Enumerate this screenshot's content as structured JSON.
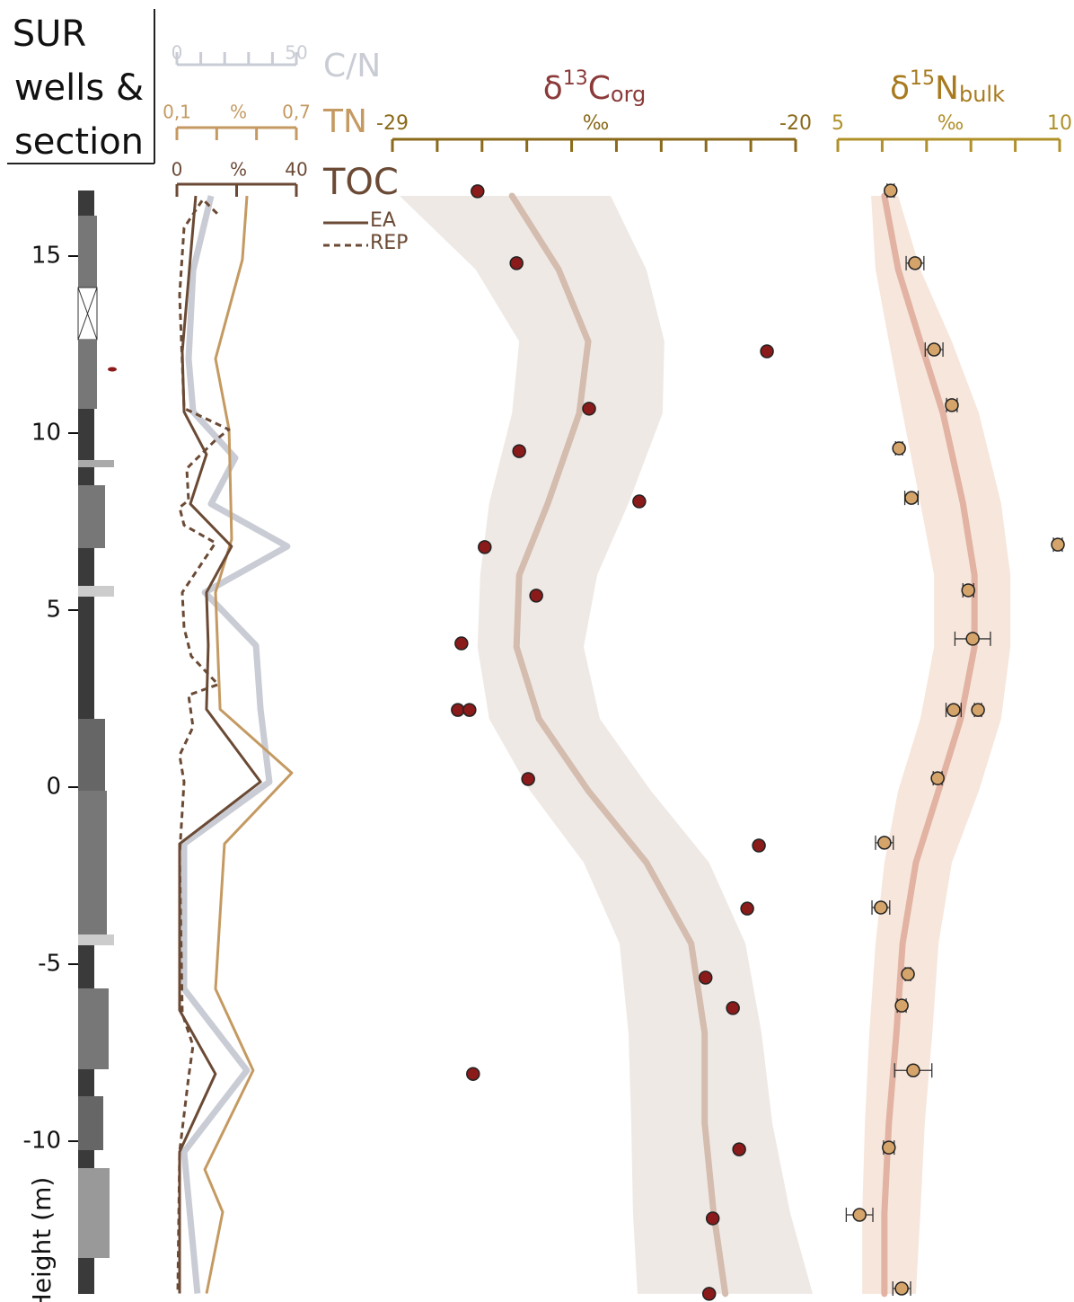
{
  "chart_data": [
    {
      "type": "section",
      "title": [
        "SUR",
        "wells &",
        "section"
      ],
      "ylabel": "Height (m)",
      "ylim": [
        -14.44,
        17.03
      ],
      "yticks": [
        15,
        10,
        5,
        0,
        -5,
        -10
      ]
    },
    {
      "type": "line",
      "axes": [
        {
          "name": "C/N",
          "color": "#c9ccd4",
          "xlim": [
            0,
            50
          ],
          "xticks": [
            0,
            50
          ],
          "xminorticks": [
            10,
            20,
            30,
            40
          ]
        },
        {
          "name": "TN",
          "color": "#c49a62",
          "xlim": [
            0.1,
            0.7
          ],
          "xticks": [
            {
              "value": 0.1,
              "label": "0,1"
            },
            {
              "value": 0.7,
              "label": "0,7"
            }
          ],
          "xminorticks": [
            0.3,
            0.5
          ],
          "xunit": "%"
        },
        {
          "name": "TOC",
          "color": "#6b4a35",
          "xlim": [
            0,
            40
          ],
          "xticks": [
            0,
            40
          ],
          "xminorticks": [
            20
          ],
          "xunit": "%"
        }
      ],
      "series": [
        {
          "axis": 0,
          "x": [
            14.3,
            6.8,
            4.9,
            6.8,
            24.4,
            14.3,
            46.2,
            11.7,
            33.1,
            35.0,
            38.7,
            3.0,
            3.0,
            29.3,
            3.0,
            8.6
          ],
          "y": [
            16.7,
            14.6,
            12.1,
            10.6,
            9.3,
            8.0,
            6.8,
            5.5,
            4.0,
            2.2,
            0.15,
            -1.6,
            -5.7,
            -8.0,
            -10.3,
            -14.3
          ]
        },
        {
          "axis": 1,
          "x": [
            0.452,
            0.429,
            0.294,
            0.362,
            0.375,
            0.294,
            0.317,
            0.677,
            0.339,
            0.294,
            0.483,
            0.24,
            0.33,
            0.249
          ],
          "y": [
            16.7,
            14.9,
            12.1,
            10.1,
            7.0,
            5.5,
            2.2,
            0.4,
            -1.6,
            -5.7,
            -8.0,
            -10.8,
            -12.0,
            -14.3
          ]
        },
        {
          "name": "EA",
          "axis": 2,
          "x": [
            6.3,
            1.8,
            2.4,
            9.9,
            4.5,
            18.3,
            9.9,
            10.5,
            9.9,
            28.0,
            0.9,
            0.9,
            12.9,
            0.9,
            0.9
          ],
          "y": [
            16.7,
            12.3,
            10.6,
            9.4,
            8.0,
            6.8,
            5.5,
            4.0,
            2.2,
            0.15,
            -1.6,
            -6.3,
            -8.1,
            -10.3,
            -14.3
          ]
        },
        {
          "name": "REP",
          "axis": 2,
          "dashed": true,
          "x": [
            13.5,
            8.7,
            2.4,
            0.9,
            2.4,
            17.4,
            12.9,
            3.3,
            3.9,
            0.9,
            2.4,
            12.9,
            1.8,
            2.4,
            4.8,
            13.8,
            3.9,
            5.4,
            0.9,
            2.4,
            0.9,
            1.8,
            5.4,
            3.9,
            0.9,
            0.3
          ],
          "y": [
            16.2,
            16.6,
            15.8,
            13.9,
            10.7,
            10.1,
            9.8,
            9.0,
            8.1,
            7.9,
            7.4,
            6.9,
            5.5,
            4.5,
            3.7,
            2.9,
            2.6,
            1.7,
            0.9,
            0.15,
            -1.9,
            -6.4,
            -7.3,
            -8.2,
            -10.3,
            -14.3
          ]
        }
      ]
    },
    {
      "type": "scatter",
      "title_parts": [
        "δ",
        "13",
        "C",
        "org"
      ],
      "title_color": "#8b3a3a",
      "axis_color": "#8a6a1a",
      "color": "#8b1a1a",
      "xlim": [
        -29,
        -20
      ],
      "xticks": [
        -29,
        -20
      ],
      "xminorticks": [
        -28,
        -27,
        -26,
        -25,
        -24,
        -23,
        -22,
        -21
      ],
      "xunit": "‰",
      "x": [
        -27.1,
        -26.23,
        -20.64,
        -24.61,
        -26.17,
        -23.49,
        -26.94,
        -25.79,
        -27.46,
        -27.54,
        -27.28,
        -25.97,
        -20.82,
        -21.08,
        -22.01,
        -21.4,
        -27.2,
        -21.26,
        -21.85,
        -21.93
      ],
      "y": [
        16.83,
        14.8,
        12.31,
        10.69,
        9.49,
        8.07,
        6.78,
        5.41,
        4.06,
        2.18,
        2.18,
        0.23,
        -1.65,
        -3.43,
        -5.38,
        -6.24,
        -8.1,
        -10.23,
        -12.18,
        -14.31
      ],
      "fit": {
        "color": "#d4bcae",
        "band_color": "#efe9e6",
        "y": [
          16.7,
          14.62,
          12.59,
          10.56,
          8.02,
          5.99,
          3.96,
          1.93,
          -0.1,
          -2.13,
          -4.42,
          -6.95,
          -9.49,
          -12.03,
          -14.31
        ],
        "x": [
          -26.33,
          -25.29,
          -24.63,
          -24.83,
          -25.53,
          -26.17,
          -26.23,
          -25.73,
          -24.63,
          -23.33,
          -22.33,
          -22.03,
          -22.03,
          -21.83,
          -21.57
        ],
        "lower": [
          -28.84,
          -27.14,
          -26.17,
          -26.33,
          -26.84,
          -27.04,
          -27.1,
          -26.84,
          -25.93,
          -24.73,
          -23.93,
          -23.73,
          -23.67,
          -23.63,
          -23.53
        ],
        "upper": [
          -24.13,
          -23.33,
          -22.93,
          -22.97,
          -23.73,
          -24.43,
          -24.73,
          -24.37,
          -23.23,
          -21.93,
          -21.12,
          -20.76,
          -20.52,
          -20.12,
          -19.62
        ]
      }
    },
    {
      "type": "scatter",
      "title_parts": [
        "δ",
        "15",
        "N",
        "bulk"
      ],
      "title_color": "#a87a1f",
      "axis_color": "#b0902a",
      "color": "#d4a46a",
      "xlim": [
        5,
        10
      ],
      "xticks": [
        5,
        10
      ],
      "xminorticks": [
        6,
        7,
        8,
        9
      ],
      "xunit": "‰",
      "x": [
        6.19,
        6.74,
        7.17,
        7.57,
        6.38,
        6.66,
        9.96,
        7.94,
        8.04,
        7.61,
        8.16,
        7.25,
        6.05,
        5.97,
        6.58,
        6.44,
        6.7,
        6.15,
        5.49,
        6.44
      ],
      "xerr": [
        0.08,
        0.2,
        0.2,
        0.12,
        0.08,
        0.15,
        0.1,
        0.12,
        0.4,
        0.17,
        0.08,
        0.1,
        0.2,
        0.2,
        0.06,
        0.1,
        0.42,
        0.12,
        0.3,
        0.2
      ],
      "y": [
        16.85,
        14.8,
        12.36,
        10.79,
        9.57,
        8.17,
        6.85,
        5.56,
        4.19,
        2.18,
        2.18,
        0.25,
        -1.57,
        -3.4,
        -5.28,
        -6.17,
        -8.0,
        -10.18,
        -12.08,
        -14.16
      ],
      "fit": {
        "color": "#e2b2a2",
        "band_color": "#f7e6dc",
        "y": [
          16.7,
          14.62,
          12.59,
          10.56,
          8.02,
          5.99,
          3.96,
          1.93,
          -0.1,
          -2.13,
          -4.42,
          -6.95,
          -9.49,
          -12.03,
          -14.31
        ],
        "x": [
          6.05,
          6.36,
          6.86,
          7.37,
          7.82,
          8.08,
          8.08,
          7.77,
          7.27,
          6.76,
          6.46,
          6.32,
          6.15,
          6.05,
          6.05
        ],
        "lower": [
          5.75,
          5.85,
          6.15,
          6.46,
          6.86,
          7.17,
          7.17,
          6.86,
          6.36,
          6.05,
          5.85,
          5.71,
          5.61,
          5.55,
          5.55
        ],
        "upper": [
          6.36,
          6.86,
          7.57,
          8.18,
          8.68,
          8.89,
          8.89,
          8.68,
          8.18,
          7.57,
          7.27,
          7.13,
          6.96,
          6.86,
          6.76
        ]
      }
    }
  ]
}
